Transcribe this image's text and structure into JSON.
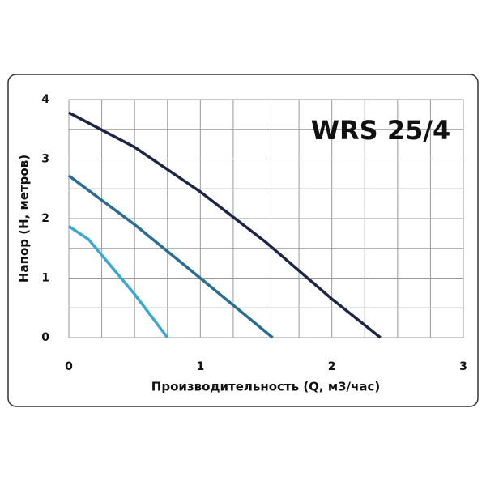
{
  "chart_data": {
    "type": "line",
    "annotation": "WRS 25/4",
    "x_label": "Производительность (Q, м3/час)",
    "y_label": "Напор (Н, метров)",
    "xlim": [
      0,
      3
    ],
    "xticks": [
      0,
      1,
      2,
      3
    ],
    "ylim": [
      0,
      4
    ],
    "yticks": [
      0,
      1,
      2,
      3,
      4
    ],
    "grid": true,
    "xgrid": [
      0,
      0.25,
      0.5,
      0.75,
      1,
      1.25,
      1.5,
      1.75,
      2,
      2.25,
      2.5,
      2.75,
      3
    ],
    "ygrid": [
      0,
      0.5,
      1,
      1.5,
      2,
      2.5,
      3,
      3.5,
      4
    ],
    "series": [
      {
        "color": "#1c2546",
        "x": [
          0,
          0.5,
          1,
          1.5,
          2,
          2.37
        ],
        "values": [
          3.78,
          3.2,
          2.45,
          1.6,
          0.65,
          0
        ]
      },
      {
        "color": "#2a6d92",
        "x": [
          0,
          0.5,
          1,
          1.55
        ],
        "values": [
          2.72,
          1.9,
          1.0,
          0
        ]
      },
      {
        "color": "#3aa8d0",
        "x": [
          0,
          0.15,
          0.5,
          0.75
        ],
        "values": [
          1.87,
          1.65,
          0.73,
          0
        ]
      }
    ]
  }
}
